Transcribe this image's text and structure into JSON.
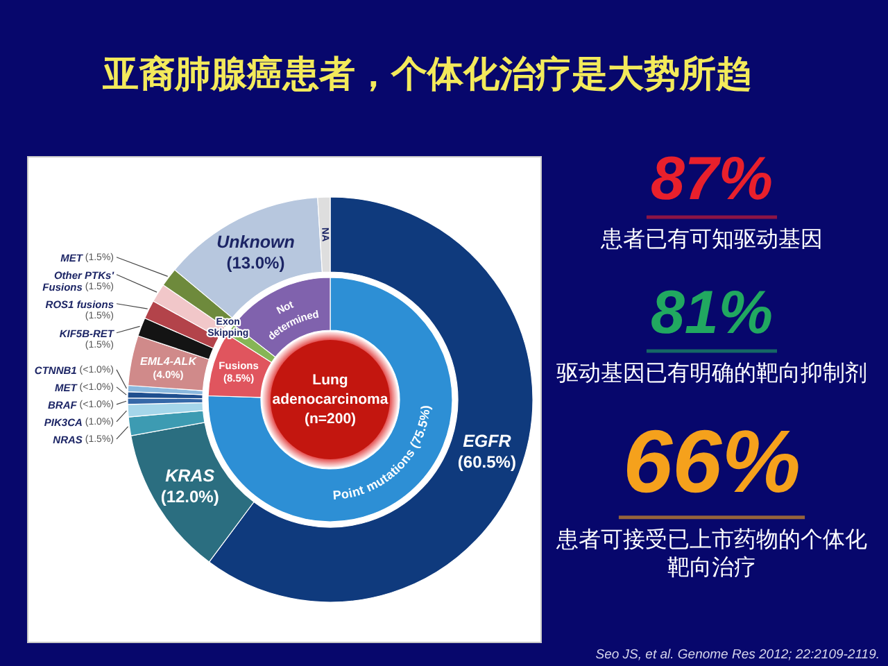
{
  "chart_data": [
    {
      "type": "donut",
      "title": "亚裔肺腺癌患者，个体化治疗是大势所趋",
      "categories": [
        "EGFR",
        "KRAS",
        "NRAS",
        "PIK3CA",
        "BRAF",
        "MET",
        "CTNNB1",
        "EML4-ALK",
        "KIF5B-RET",
        "ROS1 fusions",
        "Other PTKs' Fusions",
        "MET",
        "Unknown",
        "NA"
      ],
      "values": [
        60.5,
        12.0,
        1.5,
        1.0,
        0.5,
        0.5,
        0.5,
        4.0,
        1.5,
        1.5,
        1.5,
        1.5,
        13.0,
        1.0
      ],
      "value_labels": [
        "(60.5%)",
        "(12.0%)",
        "(1.5%)",
        "(1.0%)",
        "(<1.0%)",
        "(<1.0%)",
        "(<1.0%)",
        "(4.0%)",
        "(1.5%)",
        "(1.5%)",
        "(1.5%)",
        "(1.5%)",
        "(13.0%)",
        null
      ],
      "colors": [
        "#0f3a7d",
        "#2b6e80",
        "#3d9bb2",
        "#a5d6ea",
        "#3568a8",
        "#1f4f8f",
        "#8ab8de",
        "#d08a8a",
        "#141414",
        "#b3434a",
        "#f1c7c9",
        "#6e8a3c",
        "#b7c7de",
        "#dedede"
      ],
      "annotations": [
        "Seo JS, et al. Genome Res 2012; 22:2109-2119."
      ]
    },
    {
      "type": "donut",
      "categories": [
        "Point mutations",
        "Fusions",
        "Exon Skipping",
        "Not determined"
      ],
      "values": [
        75.5,
        8.5,
        1.5,
        14.5
      ],
      "value_labels": [
        "(75.5%)",
        "(8.5%)",
        null,
        null
      ],
      "colors": [
        "#2d8fd5",
        "#e0555e",
        "#86b556",
        "#8062ad"
      ],
      "annotations": [
        "Lung adenocarcinoma (n=200)"
      ]
    },
    {
      "type": "other",
      "categories": [
        "87%",
        "81%",
        "66%"
      ],
      "colors": [
        "#e8202c",
        "#21a860",
        "#f5a11c"
      ],
      "annotations": [
        "患者已有可知驱动基因",
        "驱动基因已有明确的靶向抑制剂",
        "患者可接受已上市药物的个体化靶向治疗"
      ]
    }
  ]
}
